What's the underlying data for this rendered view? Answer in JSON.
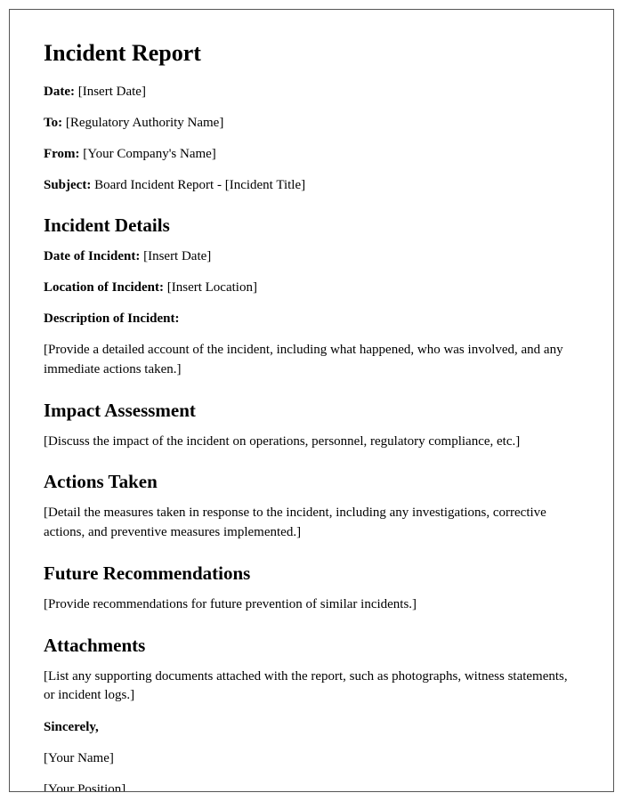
{
  "typography": {
    "font_family": "Times New Roman, serif",
    "h1_fontsize": 26,
    "h2_fontsize": 21,
    "body_fontsize": 15,
    "text_color": "#000000",
    "background_color": "#ffffff",
    "border_color": "#555555"
  },
  "title": "Incident Report",
  "header": {
    "date_label": "Date:",
    "date_value": "[Insert Date]",
    "to_label": "To:",
    "to_value": "[Regulatory Authority Name]",
    "from_label": "From:",
    "from_value": "[Your Company's Name]",
    "subject_label": "Subject:",
    "subject_value": "Board Incident Report - [Incident Title]"
  },
  "details": {
    "heading": "Incident Details",
    "date_label": "Date of Incident:",
    "date_value": "[Insert Date]",
    "location_label": "Location of Incident:",
    "location_value": "[Insert Location]",
    "description_label": "Description of Incident:",
    "description_value": "[Provide a detailed account of the incident, including what happened, who was involved, and any immediate actions taken.]"
  },
  "impact": {
    "heading": "Impact Assessment",
    "body": "[Discuss the impact of the incident on operations, personnel, regulatory compliance, etc.]"
  },
  "actions": {
    "heading": "Actions Taken",
    "body": "[Detail the measures taken in response to the incident, including any investigations, corrective actions, and preventive measures implemented.]"
  },
  "recommendations": {
    "heading": "Future Recommendations",
    "body": "[Provide recommendations for future prevention of similar incidents.]"
  },
  "attachments": {
    "heading": "Attachments",
    "body": "[List any supporting documents attached with the report, such as photographs, witness statements, or incident logs.]"
  },
  "signoff": {
    "sincerely": "Sincerely,",
    "name": "[Your Name]",
    "position": "[Your Position]"
  }
}
